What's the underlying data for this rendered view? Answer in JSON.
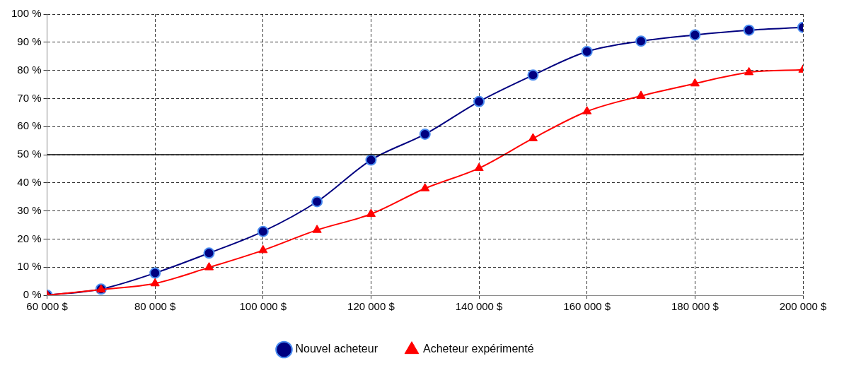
{
  "chart_data": {
    "type": "line",
    "x": [
      60000,
      70000,
      80000,
      90000,
      100000,
      110000,
      120000,
      130000,
      140000,
      150000,
      160000,
      170000,
      180000,
      190000,
      200000
    ],
    "series": [
      {
        "name": "Nouvel acheteur",
        "color": "#000080",
        "marker": "circle",
        "values": [
          0,
          2.2,
          7.9,
          15,
          22.7,
          33.3,
          48.1,
          57.3,
          68.9,
          78.3,
          86.7,
          90.4,
          92.6,
          94.3,
          95.3
        ]
      },
      {
        "name": "Acheteur expérimenté",
        "color": "#ff0000",
        "marker": "triangle",
        "values": [
          0,
          2,
          4.2,
          9.9,
          16,
          23.2,
          28.9,
          38,
          45.2,
          55.8,
          65.4,
          70.9,
          75.3,
          79.3,
          80.2
        ]
      }
    ],
    "xlim": [
      60000,
      200000
    ],
    "xticks": [
      {
        "value": 60000,
        "label": "60 000 $"
      },
      {
        "value": 80000,
        "label": "80 000 $"
      },
      {
        "value": 100000,
        "label": "100 000 $"
      },
      {
        "value": 120000,
        "label": "120 000 $"
      },
      {
        "value": 140000,
        "label": "140 000 $"
      },
      {
        "value": 160000,
        "label": "160 000 $"
      },
      {
        "value": 180000,
        "label": "180 000 $"
      },
      {
        "value": 200000,
        "label": "200 000 $"
      }
    ],
    "ylim": [
      0,
      100
    ],
    "yticks": [
      {
        "value": 0,
        "label": "0 %"
      },
      {
        "value": 10,
        "label": "10 %"
      },
      {
        "value": 20,
        "label": "20 %"
      },
      {
        "value": 30,
        "label": "30 %"
      },
      {
        "value": 40,
        "label": "40 %"
      },
      {
        "value": 50,
        "label": "50 %"
      },
      {
        "value": 60,
        "label": "60 %"
      },
      {
        "value": 70,
        "label": "70 %"
      },
      {
        "value": 80,
        "label": "80 %"
      },
      {
        "value": 90,
        "label": "90 %"
      },
      {
        "value": 100,
        "label": "100 %"
      }
    ],
    "ref_lines": [
      {
        "axis": "y",
        "value": 50,
        "color": "#000000",
        "line_style": "solid"
      }
    ],
    "grid": true,
    "legend": "bottom",
    "line_style": "solid"
  }
}
